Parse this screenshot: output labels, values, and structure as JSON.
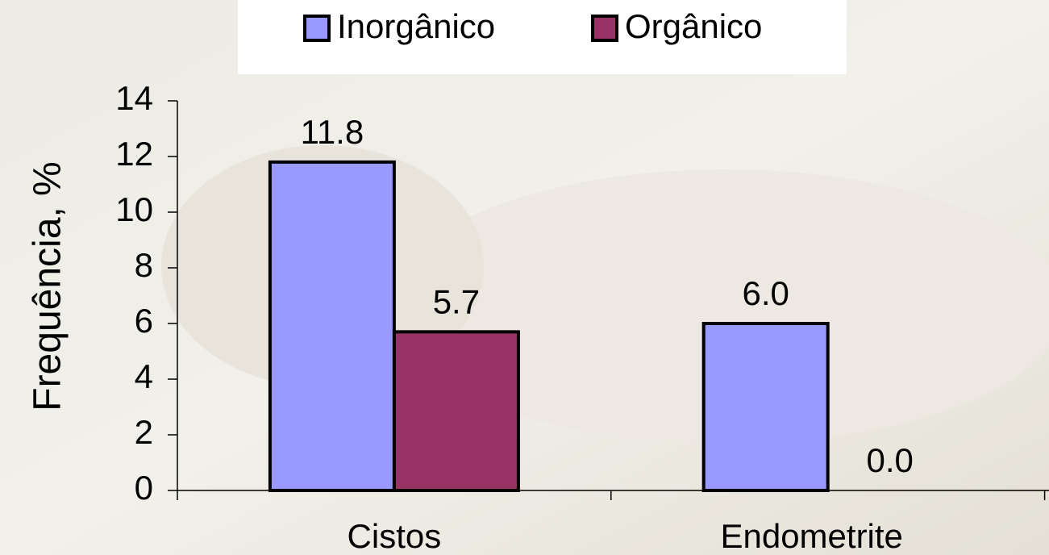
{
  "chart_data": {
    "type": "bar",
    "categories": [
      "Cistos",
      "Endometrite"
    ],
    "series": [
      {
        "name": "Inorgânico",
        "color": "#9999ff",
        "values": [
          11.8,
          6.0
        ],
        "value_labels": [
          "11.8",
          "6.0"
        ]
      },
      {
        "name": "Orgânico",
        "color": "#993366",
        "values": [
          5.7,
          0.0
        ],
        "value_labels": [
          "5.7",
          "0.0"
        ]
      }
    ],
    "y_label": "Frequência, %",
    "ylim": [
      0,
      14
    ],
    "yticks": [
      0,
      2,
      4,
      6,
      8,
      10,
      12,
      14
    ],
    "legend": "top"
  }
}
